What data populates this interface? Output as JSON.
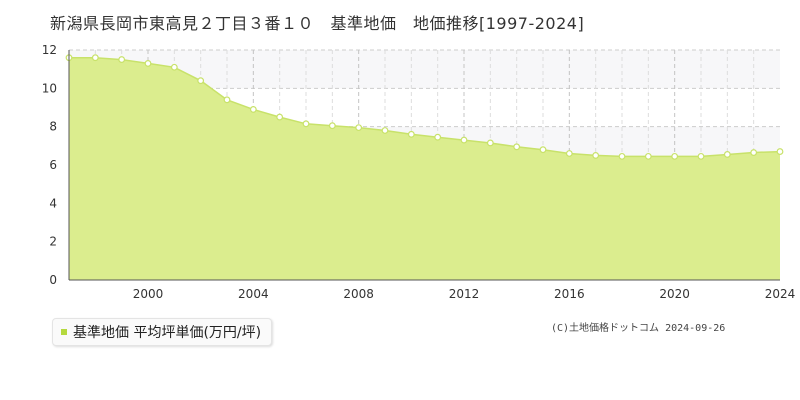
{
  "title": "新潟県長岡市東高見２丁目３番１０　基準地価　地価推移[1997-2024]",
  "legend_label": "基準地価 平均坪単価(万円/坪)",
  "copyright": "(C)土地価格ドットコム 2024-09-26",
  "colors": {
    "fill": "#dbed8e",
    "line": "#c8e26a",
    "point": "#ffffff",
    "swatch": "#b5d93e",
    "band": "#f7f7f9"
  },
  "chart_data": {
    "type": "area",
    "title": "新潟県長岡市東高見２丁目３番１０　基準地価　地価推移[1997-2024]",
    "xlabel": "",
    "ylabel": "",
    "xlim": [
      1997,
      2024
    ],
    "ylim": [
      0,
      12
    ],
    "x_ticks": [
      2000,
      2004,
      2008,
      2012,
      2016,
      2020,
      2024
    ],
    "y_ticks": [
      0,
      2,
      4,
      6,
      8,
      10,
      12
    ],
    "grid": true,
    "legend": "bottom-left",
    "series": [
      {
        "name": "基準地価 平均坪単価(万円/坪)",
        "x": [
          1997,
          1998,
          1999,
          2000,
          2001,
          2002,
          2003,
          2004,
          2005,
          2006,
          2007,
          2008,
          2009,
          2010,
          2011,
          2012,
          2013,
          2014,
          2015,
          2016,
          2017,
          2018,
          2019,
          2020,
          2021,
          2022,
          2023,
          2024
        ],
        "values": [
          11.6,
          11.6,
          11.5,
          11.3,
          11.1,
          10.4,
          9.4,
          8.9,
          8.5,
          8.15,
          8.05,
          7.95,
          7.8,
          7.6,
          7.45,
          7.3,
          7.15,
          6.95,
          6.8,
          6.6,
          6.5,
          6.45,
          6.45,
          6.45,
          6.45,
          6.55,
          6.65,
          6.7
        ]
      }
    ]
  }
}
